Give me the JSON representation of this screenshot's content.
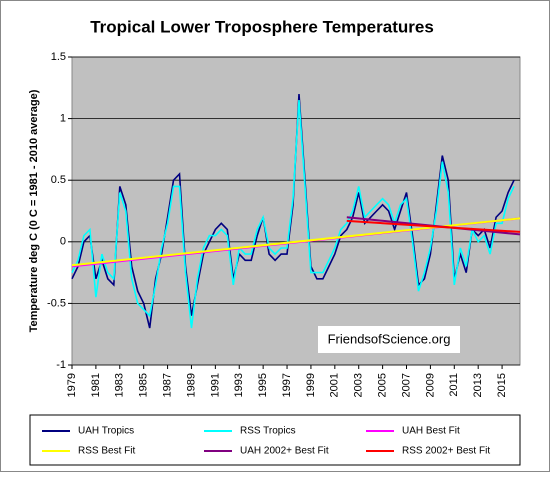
{
  "chart_data": {
    "type": "line",
    "title": "Tropical Lower Troposphere Temperatures",
    "y_label": "Temperature deg C  (0 C = 1981 - 2010 average)",
    "annotation": "FriendsofScience.org",
    "x": [
      1979,
      1979.5,
      1980,
      1980.5,
      1981,
      1981.5,
      1982,
      1982.5,
      1983,
      1983.5,
      1984,
      1984.5,
      1985,
      1985.5,
      1986,
      1986.5,
      1987,
      1987.5,
      1988,
      1988.5,
      1989,
      1989.5,
      1990,
      1990.5,
      1991,
      1991.5,
      1992,
      1992.5,
      1993,
      1993.5,
      1994,
      1994.5,
      1995,
      1995.5,
      1996,
      1996.5,
      1997,
      1997.5,
      1998,
      1998.5,
      1999,
      1999.5,
      2000,
      2000.5,
      2001,
      2001.5,
      2002,
      2002.5,
      2003,
      2003.5,
      2004,
      2004.5,
      2005,
      2005.5,
      2006,
      2006.5,
      2007,
      2007.5,
      2008,
      2008.5,
      2009,
      2009.5,
      2010,
      2010.5,
      2011,
      2011.5,
      2012,
      2012.5,
      2013,
      2013.5,
      2014,
      2014.5,
      2015,
      2015.5,
      2016
    ],
    "xlim": [
      1979,
      2016.5
    ],
    "xticks": [
      1979,
      1981,
      1983,
      1985,
      1987,
      1989,
      1991,
      1993,
      1995,
      1997,
      1999,
      2001,
      2003,
      2005,
      2007,
      2009,
      2011,
      2013,
      2015
    ],
    "ylim": [
      -1,
      1.5
    ],
    "yticks": [
      -1,
      -0.5,
      0,
      0.5,
      1,
      1.5
    ],
    "grid": true,
    "legend": "bottom",
    "series": [
      {
        "name": "UAH Tropics",
        "color": "#000080",
        "values": [
          -0.3,
          -0.2,
          0.0,
          0.05,
          -0.3,
          -0.15,
          -0.3,
          -0.35,
          0.45,
          0.3,
          -0.2,
          -0.4,
          -0.5,
          -0.7,
          -0.3,
          -0.1,
          0.2,
          0.5,
          0.55,
          -0.2,
          -0.6,
          -0.35,
          -0.1,
          0.0,
          0.1,
          0.15,
          0.1,
          -0.3,
          -0.1,
          -0.15,
          -0.15,
          0.05,
          0.2,
          -0.1,
          -0.15,
          -0.1,
          -0.1,
          0.3,
          1.2,
          0.5,
          -0.2,
          -0.3,
          -0.3,
          -0.2,
          -0.1,
          0.05,
          0.1,
          0.2,
          0.4,
          0.15,
          0.2,
          0.25,
          0.3,
          0.25,
          0.1,
          0.25,
          0.4,
          0.05,
          -0.35,
          -0.3,
          -0.1,
          0.3,
          0.7,
          0.5,
          -0.3,
          -0.1,
          -0.25,
          0.1,
          0.05,
          0.1,
          -0.05,
          0.2,
          0.25,
          0.4,
          0.5
        ]
      },
      {
        "name": "RSS Tropics",
        "color": "#00ffff",
        "values": [
          -0.25,
          -0.15,
          0.05,
          0.1,
          -0.45,
          -0.1,
          -0.25,
          -0.3,
          0.4,
          0.25,
          -0.3,
          -0.5,
          -0.55,
          -0.6,
          -0.35,
          -0.05,
          0.15,
          0.45,
          0.45,
          -0.25,
          -0.7,
          -0.3,
          -0.05,
          0.05,
          0.05,
          0.1,
          0.05,
          -0.35,
          -0.05,
          -0.1,
          -0.1,
          0.1,
          0.2,
          -0.05,
          -0.1,
          -0.05,
          -0.05,
          0.35,
          1.15,
          0.45,
          -0.25,
          -0.25,
          -0.25,
          -0.15,
          -0.05,
          0.1,
          0.15,
          0.25,
          0.45,
          0.2,
          0.25,
          0.3,
          0.35,
          0.3,
          0.15,
          0.3,
          0.35,
          0.0,
          -0.4,
          -0.25,
          -0.05,
          0.25,
          0.65,
          0.4,
          -0.35,
          -0.05,
          -0.2,
          0.1,
          0.0,
          0.05,
          -0.1,
          0.15,
          0.15,
          0.35,
          0.45
        ]
      },
      {
        "name": "UAH Best Fit",
        "color": "#ff00ff",
        "x": [
          1979,
          2016.5
        ],
        "values": [
          -0.2,
          0.19
        ]
      },
      {
        "name": "RSS Best Fit",
        "color": "#ffff00",
        "x": [
          1979,
          2016.5
        ],
        "values": [
          -0.19,
          0.19
        ]
      },
      {
        "name": "UAH 2002+ Best Fit",
        "color": "#800080",
        "x": [
          2002,
          2016.5
        ],
        "values": [
          0.2,
          0.06
        ]
      },
      {
        "name": "RSS 2002+ Best Fit",
        "color": "#ff0000",
        "x": [
          2002,
          2016.5
        ],
        "values": [
          0.17,
          0.08
        ]
      }
    ]
  }
}
